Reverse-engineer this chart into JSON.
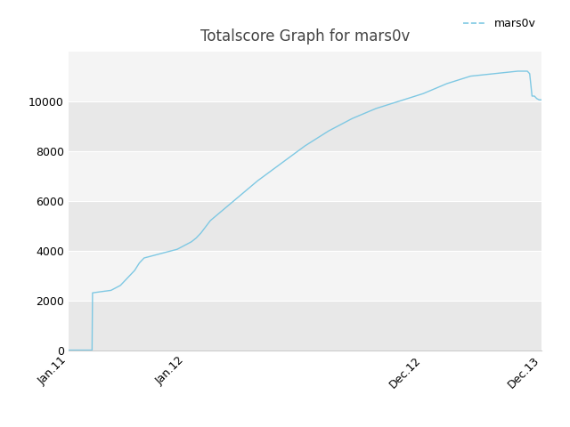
{
  "title": "Totalscore Graph for mars0v",
  "legend_label": "mars0v",
  "line_color": "#7ec8e3",
  "background_color": "#ebebeb",
  "figure_background": "#ffffff",
  "band_color_dark": "#e0e0e0",
  "band_color_light": "#f0f0f0",
  "ylim": [
    0,
    12000
  ],
  "yticks": [
    0,
    2000,
    4000,
    6000,
    8000,
    10000
  ],
  "title_fontsize": 12,
  "tick_fontsize": 9,
  "legend_fontsize": 9,
  "x_data": [
    0.0,
    0.05,
    0.051,
    0.07,
    0.09,
    0.1,
    0.11,
    0.12,
    0.13,
    0.14,
    0.15,
    0.16,
    0.17,
    0.18,
    0.19,
    0.2,
    0.21,
    0.22,
    0.23,
    0.24,
    0.25,
    0.26,
    0.27,
    0.28,
    0.3,
    0.35,
    0.4,
    0.45,
    0.5,
    0.55,
    0.6,
    0.65,
    0.7,
    0.75,
    0.8,
    0.85,
    0.9,
    0.95,
    0.96,
    0.97,
    0.975,
    0.98,
    0.985,
    0.99,
    0.995,
    1.0
  ],
  "y_data": [
    0,
    0,
    2300,
    2350,
    2400,
    2500,
    2600,
    2800,
    3000,
    3200,
    3500,
    3700,
    3750,
    3800,
    3850,
    3900,
    3950,
    4000,
    4050,
    4150,
    4250,
    4350,
    4500,
    4700,
    5200,
    6000,
    6800,
    7500,
    8200,
    8800,
    9300,
    9700,
    10000,
    10300,
    10700,
    11000,
    11100,
    11200,
    11200,
    11200,
    11100,
    10200,
    10200,
    10100,
    10050,
    10050
  ],
  "xtick_positions": [
    0.0,
    0.25,
    0.75,
    1.0
  ],
  "xtick_labels": [
    "Jan.11",
    "Jan.12",
    "Dec.12",
    "Dec.13"
  ]
}
